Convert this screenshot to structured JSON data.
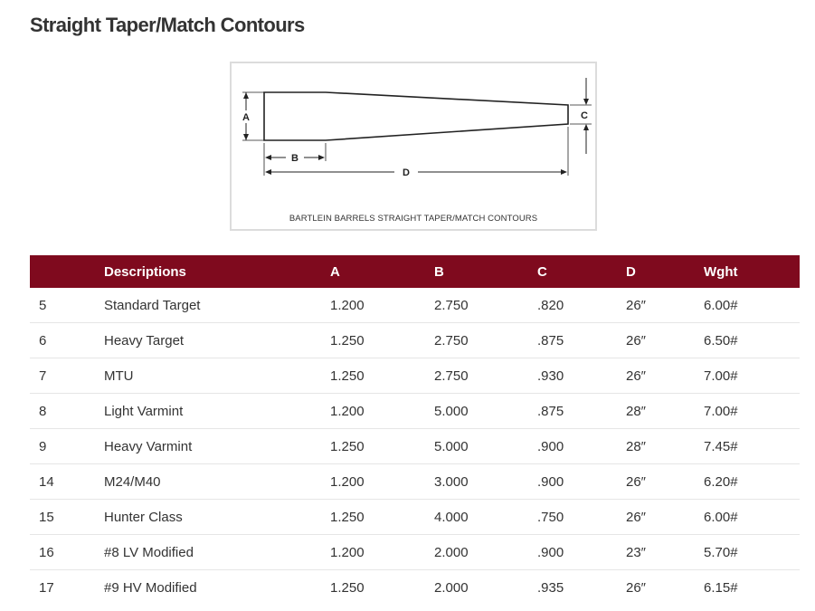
{
  "page": {
    "title": "Straight Taper/Match Contours"
  },
  "diagram": {
    "caption": "BARTLEIN BARRELS STRAIGHT TAPER/MATCH CONTOURS",
    "labels": {
      "a": "A",
      "b": "B",
      "c": "C",
      "d": "D"
    }
  },
  "table": {
    "header_color": "#7f0a1e",
    "columns": [
      "",
      "Descriptions",
      "A",
      "B",
      "C",
      "D",
      "Wght"
    ],
    "rows": [
      [
        "5",
        "Standard Target",
        "1.200",
        "2.750",
        ".820",
        "26″",
        "6.00#"
      ],
      [
        "6",
        "Heavy Target",
        "1.250",
        "2.750",
        ".875",
        "26″",
        "6.50#"
      ],
      [
        "7",
        "MTU",
        "1.250",
        "2.750",
        ".930",
        "26″",
        "7.00#"
      ],
      [
        "8",
        "Light Varmint",
        "1.200",
        "5.000",
        ".875",
        "28″",
        "7.00#"
      ],
      [
        "9",
        "Heavy Varmint",
        "1.250",
        "5.000",
        ".900",
        "28″",
        "7.45#"
      ],
      [
        "14",
        "M24/M40",
        "1.200",
        "3.000",
        ".900",
        "26″",
        "6.20#"
      ],
      [
        "15",
        "Hunter Class",
        "1.250",
        "4.000",
        ".750",
        "26″",
        "6.00#"
      ],
      [
        "16",
        "#8 LV Modified",
        "1.200",
        "2.000",
        ".900",
        "23″",
        "5.70#"
      ],
      [
        "17",
        "#9 HV Modified",
        "1.250",
        "2.000",
        ".935",
        "26″",
        "6.15#"
      ]
    ]
  }
}
